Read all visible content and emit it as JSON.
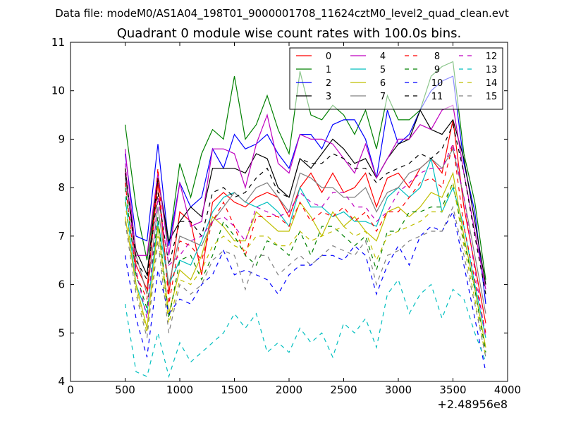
{
  "figure": {
    "suptitle": "Data file: modeM0/AS1A04_198T01_9000001708_11624cztM0_level2_quad_clean.evt"
  },
  "chart_data": {
    "type": "line",
    "title": "Quadrant 0 module wise count rates with 100.0s bins.",
    "xlabel": "",
    "ylabel": "",
    "x_offset_label": "+2.48956e8",
    "xlim": [
      0,
      4000
    ],
    "ylim": [
      4,
      11
    ],
    "xticks": [
      0,
      500,
      1000,
      1500,
      2000,
      2500,
      3000,
      3500,
      4000
    ],
    "yticks": [
      4,
      5,
      6,
      7,
      8,
      9,
      10,
      11
    ],
    "legend": {
      "position": "top-right",
      "columns": 4
    },
    "x": [
      500,
      600,
      700,
      800,
      900,
      1000,
      1100,
      1200,
      1300,
      1400,
      1500,
      1600,
      1700,
      1800,
      1900,
      2000,
      2100,
      2200,
      2300,
      2400,
      2500,
      2600,
      2700,
      2800,
      2900,
      3000,
      3100,
      3200,
      3300,
      3400,
      3500,
      3600,
      3700,
      3800
    ],
    "series": [
      {
        "name": "0",
        "color": "#ff0000",
        "dash": "solid",
        "values": [
          8.4,
          6.4,
          5.9,
          8.1,
          5.8,
          7.5,
          7.3,
          6.2,
          7.7,
          7.9,
          7.7,
          7.6,
          7.8,
          7.9,
          7.8,
          7.4,
          8.0,
          8.3,
          7.9,
          8.3,
          7.9,
          8.0,
          8.3,
          7.6,
          8.2,
          8.3,
          8.0,
          8.4,
          8.6,
          8.3,
          9.4,
          7.6,
          6.4,
          5.2
        ]
      },
      {
        "name": "1",
        "color": "#008000",
        "dash": "solid",
        "values": [
          9.3,
          7.6,
          6.5,
          8.2,
          6.8,
          8.5,
          7.8,
          8.7,
          9.2,
          9.0,
          10.3,
          9.0,
          9.3,
          9.9,
          9.2,
          8.7,
          10.4,
          9.5,
          9.4,
          9.7,
          9.5,
          9.1,
          9.6,
          8.8,
          9.9,
          9.4,
          9.4,
          9.6,
          10.3,
          10.5,
          10.6,
          8.7,
          7.7,
          6.1
        ]
      },
      {
        "name": "2",
        "color": "#0000ff",
        "dash": "solid",
        "values": [
          8.7,
          7.0,
          6.9,
          8.9,
          6.8,
          8.1,
          7.6,
          7.8,
          8.8,
          8.4,
          9.1,
          8.8,
          8.9,
          9.1,
          8.7,
          8.4,
          9.1,
          9.1,
          8.8,
          9.3,
          9.4,
          9.4,
          9.0,
          8.2,
          9.6,
          8.9,
          9.1,
          9.6,
          10.0,
          10.2,
          10.3,
          8.5,
          7.5,
          5.6
        ]
      },
      {
        "name": "3",
        "color": "#000000",
        "dash": "solid",
        "values": [
          8.3,
          6.7,
          6.2,
          8.2,
          6.9,
          7.3,
          7.6,
          7.4,
          8.4,
          8.4,
          8.4,
          8.3,
          8.7,
          8.6,
          8.0,
          7.8,
          8.6,
          8.4,
          8.7,
          9.0,
          8.8,
          8.5,
          8.6,
          8.2,
          8.6,
          8.9,
          9.0,
          9.6,
          9.2,
          9.1,
          9.4,
          8.6,
          7.3,
          6.0
        ]
      },
      {
        "name": "4",
        "color": "#bf00bf",
        "dash": "solid",
        "values": [
          8.8,
          6.6,
          6.6,
          8.3,
          6.6,
          8.1,
          7.2,
          7.3,
          8.8,
          8.8,
          8.7,
          8.0,
          8.9,
          9.5,
          8.5,
          8.3,
          9.1,
          9.0,
          9.0,
          8.9,
          8.6,
          8.3,
          8.9,
          8.2,
          8.6,
          9.0,
          9.0,
          9.3,
          9.2,
          9.6,
          9.7,
          8.3,
          7.1,
          5.9
        ]
      },
      {
        "name": "5",
        "color": "#00bfbf",
        "dash": "solid",
        "values": [
          7.8,
          6.0,
          5.4,
          7.3,
          6.0,
          6.5,
          6.4,
          6.9,
          7.5,
          7.8,
          7.9,
          7.7,
          7.6,
          7.7,
          7.5,
          7.2,
          8.0,
          7.6,
          7.6,
          7.4,
          7.5,
          7.3,
          7.3,
          7.2,
          7.8,
          8.0,
          7.8,
          8.0,
          8.6,
          7.5,
          8.0,
          7.2,
          6.0,
          4.9
        ]
      },
      {
        "name": "6",
        "color": "#bfbf00",
        "dash": "solid",
        "values": [
          7.4,
          6.0,
          5.1,
          7.2,
          5.4,
          6.3,
          6.1,
          6.6,
          7.4,
          7.2,
          6.9,
          6.9,
          7.5,
          7.3,
          7.1,
          7.1,
          7.7,
          7.4,
          7.0,
          7.5,
          7.2,
          7.4,
          7.1,
          6.9,
          7.5,
          7.6,
          7.4,
          7.6,
          7.9,
          7.8,
          8.3,
          7.0,
          5.9,
          4.7
        ]
      },
      {
        "name": "7",
        "color": "#808080",
        "dash": "solid",
        "values": [
          8.2,
          6.6,
          5.8,
          7.6,
          6.0,
          7.0,
          6.9,
          6.8,
          7.3,
          7.6,
          7.9,
          7.7,
          8.0,
          8.1,
          7.8,
          7.5,
          8.3,
          8.2,
          8.0,
          8.0,
          7.8,
          7.8,
          8.0,
          7.5,
          7.9,
          8.0,
          8.3,
          8.4,
          8.6,
          8.4,
          8.8,
          7.8,
          6.6,
          5.4
        ]
      },
      {
        "name": "8",
        "color": "#ff0000",
        "dash": "dashed",
        "values": [
          8.1,
          6.2,
          5.7,
          8.4,
          5.6,
          6.9,
          6.8,
          6.5,
          7.3,
          7.7,
          7.2,
          6.6,
          7.4,
          7.4,
          7.4,
          7.2,
          7.7,
          7.3,
          7.5,
          7.4,
          7.6,
          7.3,
          7.5,
          7.1,
          7.5,
          7.5,
          7.8,
          8.1,
          8.2,
          8.0,
          8.9,
          7.2,
          6.1,
          5.0
        ]
      },
      {
        "name": "9",
        "color": "#008000",
        "dash": "dashed",
        "values": [
          8.0,
          6.2,
          5.5,
          7.4,
          5.3,
          6.5,
          6.6,
          6.1,
          6.6,
          7.3,
          7.0,
          6.6,
          6.4,
          6.9,
          6.8,
          6.6,
          7.1,
          6.6,
          7.2,
          7.2,
          7.0,
          6.8,
          7.0,
          6.3,
          7.1,
          7.1,
          7.5,
          7.5,
          7.6,
          7.6,
          8.1,
          6.9,
          5.9,
          4.6
        ]
      },
      {
        "name": "10",
        "color": "#0000ff",
        "dash": "dashed",
        "values": [
          6.6,
          5.3,
          4.5,
          6.3,
          5.4,
          5.7,
          5.6,
          6.0,
          6.2,
          6.7,
          6.2,
          6.3,
          6.2,
          6.1,
          5.8,
          6.2,
          6.4,
          6.4,
          6.6,
          6.6,
          6.5,
          6.8,
          6.6,
          5.8,
          6.4,
          6.8,
          6.4,
          7.0,
          7.2,
          7.1,
          7.5,
          6.4,
          5.3,
          4.2
        ]
      },
      {
        "name": "11",
        "color": "#000000",
        "dash": "dashed",
        "values": [
          8.4,
          6.5,
          6.1,
          7.9,
          6.4,
          7.3,
          7.3,
          7.0,
          7.9,
          8.0,
          7.8,
          7.9,
          8.2,
          8.4,
          7.9,
          7.8,
          8.6,
          8.5,
          8.5,
          8.7,
          8.6,
          8.4,
          8.4,
          8.1,
          8.3,
          8.4,
          8.5,
          8.7,
          8.6,
          8.8,
          9.3,
          8.3,
          7.0,
          5.8
        ]
      },
      {
        "name": "12",
        "color": "#bf00bf",
        "dash": "dashed",
        "values": [
          8.5,
          6.3,
          5.3,
          7.8,
          6.4,
          6.6,
          6.9,
          7.0,
          7.3,
          7.4,
          7.2,
          6.9,
          7.6,
          7.5,
          7.4,
          7.5,
          7.9,
          7.7,
          7.6,
          7.9,
          7.9,
          7.6,
          7.6,
          7.3,
          7.5,
          7.9,
          8.1,
          8.3,
          8.4,
          8.4,
          8.9,
          7.8,
          6.3,
          4.9
        ]
      },
      {
        "name": "13",
        "color": "#00bfbf",
        "dash": "dashed",
        "values": [
          5.6,
          4.2,
          4.1,
          5.0,
          4.1,
          4.8,
          4.4,
          4.6,
          4.8,
          5.0,
          5.4,
          5.1,
          5.4,
          4.6,
          4.8,
          4.6,
          5.1,
          4.8,
          5.0,
          4.5,
          5.2,
          5.0,
          5.3,
          4.7,
          5.8,
          6.1,
          5.4,
          5.8,
          6.0,
          5.3,
          5.9,
          5.7,
          5.0,
          4.4
        ]
      },
      {
        "name": "14",
        "color": "#bfbf00",
        "dash": "dashed",
        "values": [
          7.7,
          5.9,
          5.0,
          7.0,
          5.2,
          6.1,
          6.0,
          6.3,
          6.8,
          7.0,
          6.8,
          6.7,
          7.0,
          7.0,
          6.8,
          6.8,
          7.1,
          6.9,
          7.0,
          7.1,
          7.2,
          7.0,
          7.1,
          6.5,
          7.0,
          7.1,
          7.2,
          7.3,
          7.5,
          7.5,
          8.1,
          6.8,
          5.7,
          4.5
        ]
      },
      {
        "name": "15",
        "color": "#808080",
        "dash": "dashed",
        "values": [
          7.3,
          5.8,
          4.9,
          6.9,
          5.0,
          6.0,
          5.8,
          6.0,
          6.5,
          6.7,
          6.6,
          5.9,
          6.6,
          6.6,
          6.2,
          6.4,
          6.6,
          6.4,
          6.6,
          6.8,
          6.7,
          6.6,
          6.9,
          6.0,
          6.6,
          6.7,
          6.9,
          7.0,
          7.1,
          7.1,
          7.6,
          6.6,
          5.6,
          4.5
        ]
      }
    ]
  }
}
